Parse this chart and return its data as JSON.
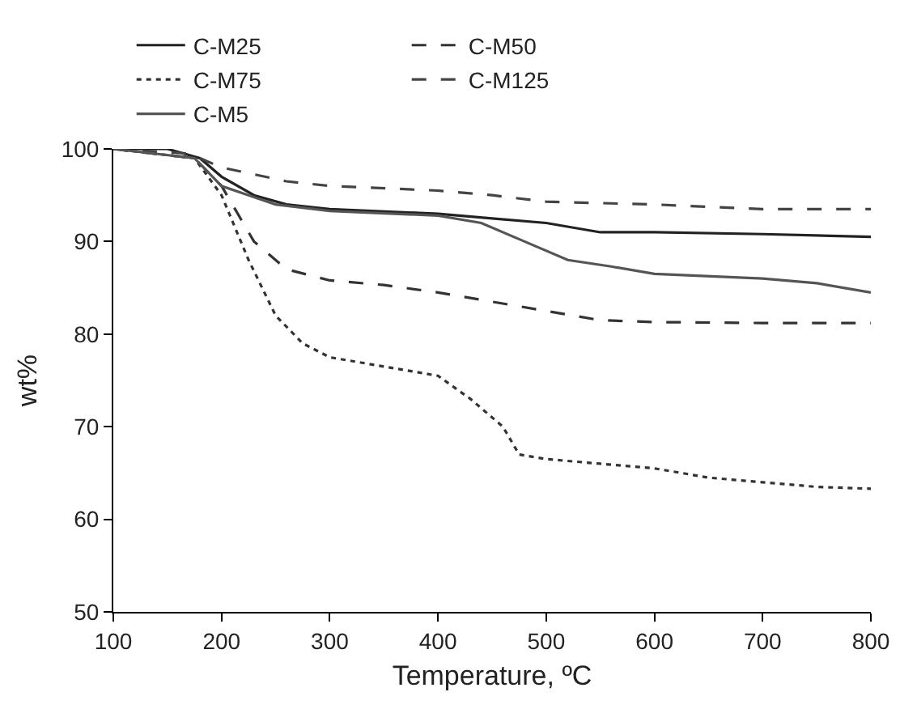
{
  "chart_data": {
    "type": "line",
    "xlabel": "Temperature, ºC",
    "ylabel": "wt%",
    "xlim": [
      100,
      800
    ],
    "xticks": [
      100,
      200,
      300,
      400,
      500,
      600,
      700,
      800
    ],
    "ylim": [
      50,
      100
    ],
    "yticks": [
      50,
      60,
      70,
      80,
      90,
      100
    ],
    "grid": false,
    "legend": "top",
    "marker": "none",
    "series": [
      {
        "name": "C-M25",
        "color": "#222222",
        "line_style": "solid",
        "x": [
          100,
          150,
          180,
          200,
          230,
          260,
          300,
          400,
          450,
          500,
          550,
          600,
          700,
          800
        ],
        "values": [
          100,
          100,
          99,
          97,
          95,
          94,
          93.5,
          93,
          92.5,
          92,
          91,
          91,
          90.8,
          90.5
        ]
      },
      {
        "name": "C-M50",
        "color": "#333333",
        "line_style": "dashed",
        "x": [
          100,
          175,
          200,
          230,
          260,
          300,
          350,
          400,
          450,
          500,
          550,
          600,
          700,
          800
        ],
        "values": [
          100,
          99,
          96,
          90,
          87,
          85.8,
          85.3,
          84.5,
          83.5,
          82.5,
          81.5,
          81.3,
          81.2,
          81.2
        ]
      },
      {
        "name": "C-M75",
        "color": "#333333",
        "line_style": "dotted",
        "x": [
          100,
          175,
          200,
          225,
          250,
          275,
          300,
          350,
          400,
          430,
          460,
          475,
          500,
          550,
          600,
          650,
          700,
          750,
          800
        ],
        "values": [
          100,
          99,
          95,
          88,
          82,
          79,
          77.5,
          76.5,
          75.5,
          73,
          70,
          67,
          66.5,
          66,
          65.5,
          64.5,
          64,
          63.5,
          63.3
        ]
      },
      {
        "name": "C-M125",
        "color": "#444444",
        "line_style": "dashed",
        "x": [
          100,
          170,
          200,
          260,
          300,
          400,
          450,
          500,
          600,
          700,
          800
        ],
        "values": [
          100,
          99.5,
          98,
          96.5,
          96,
          95.5,
          95,
          94.3,
          94,
          93.5,
          93.5
        ]
      },
      {
        "name": "C-M5",
        "color": "#555555",
        "line_style": "solid",
        "x": [
          100,
          175,
          200,
          250,
          300,
          400,
          440,
          480,
          520,
          560,
          600,
          700,
          750,
          800
        ],
        "values": [
          100,
          99,
          96,
          94,
          93.3,
          92.8,
          92,
          90,
          88,
          87.3,
          86.5,
          86,
          85.5,
          84.5
        ]
      }
    ]
  }
}
